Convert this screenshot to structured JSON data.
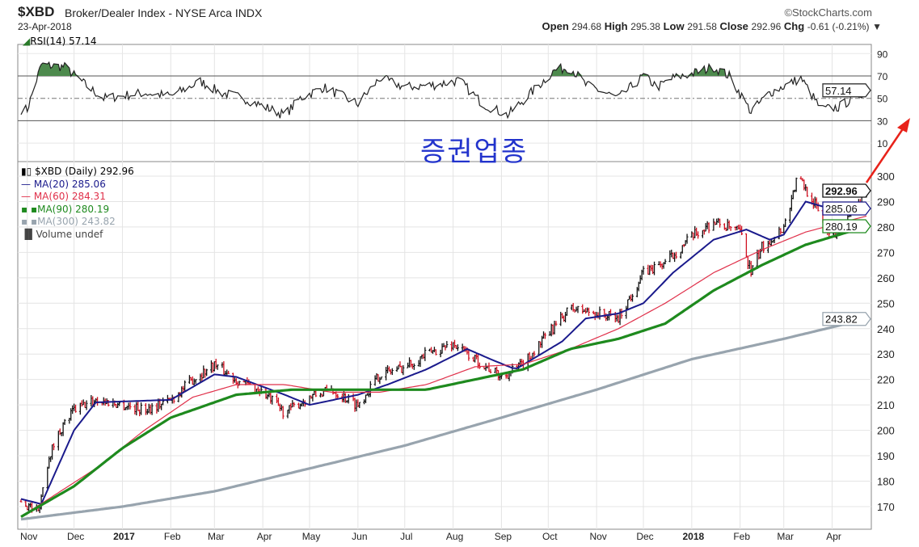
{
  "header": {
    "symbol": "$XBD",
    "description": "Broker/Dealer Index - NYSE Arca",
    "exchange": "INDX",
    "brand": "©StockCharts.com",
    "date": "23-Apr-2018",
    "open_label": "Open",
    "open": "294.68",
    "high_label": "High",
    "high": "295.38",
    "low_label": "Low",
    "low": "291.58",
    "close_label": "Close",
    "close": "292.96",
    "chg_label": "Chg",
    "chg": "-0.61 (-0.21%)",
    "chg_icon": "triangle-down"
  },
  "annotation": {
    "text": "증권업종",
    "color": "#2233cc",
    "arrow_color": "#e8221a"
  },
  "rsi_panel": {
    "label": "RSI(14) 57.14",
    "current": "57.14"
  },
  "legend": {
    "price": "$XBD (Daily) 292.96",
    "ma20": "MA(20) 285.06",
    "ma60": "MA(60) 284.31",
    "ma90": "MA(90) 280.19",
    "ma300": "MA(300) 243.82",
    "volume": "Volume undef"
  },
  "chart_data": [
    {
      "type": "line",
      "title": "RSI(14)",
      "ylim": [
        0,
        100
      ],
      "yticks": [
        "90",
        "70",
        "50",
        "30",
        "10"
      ],
      "overbought": 70,
      "oversold": 30,
      "current": 57.14,
      "x": [
        "2016-11-01",
        "2016-11-10",
        "2016-11-25",
        "2016-12-10",
        "2016-12-20",
        "2017-01-15",
        "2017-02-01",
        "2017-02-20",
        "2017-03-05",
        "2017-03-20",
        "2017-04-15",
        "2017-04-25",
        "2017-05-10",
        "2017-06-01",
        "2017-06-15",
        "2017-07-01",
        "2017-07-20",
        "2017-08-05",
        "2017-08-20",
        "2017-09-05",
        "2017-09-20",
        "2017-10-05",
        "2017-10-15",
        "2017-10-25",
        "2017-11-15",
        "2017-12-01",
        "2017-12-10",
        "2017-12-20",
        "2018-01-01",
        "2018-01-15",
        "2018-01-25",
        "2018-02-08",
        "2018-02-20",
        "2018-03-12",
        "2018-03-25",
        "2018-04-05",
        "2018-04-23"
      ],
      "values": [
        40,
        80,
        78,
        60,
        50,
        55,
        52,
        65,
        55,
        50,
        35,
        50,
        60,
        45,
        68,
        60,
        62,
        66,
        45,
        35,
        55,
        75,
        78,
        62,
        50,
        70,
        60,
        68,
        72,
        78,
        70,
        38,
        55,
        68,
        40,
        42,
        57.14
      ]
    },
    {
      "type": "candlestick",
      "title": "$XBD (Daily)",
      "ylim": [
        165,
        303
      ],
      "yticks": [
        "300",
        "290",
        "280",
        "270",
        "260",
        "250",
        "240",
        "230",
        "220",
        "210",
        "200",
        "190",
        "180",
        "170"
      ],
      "xticks": [
        "Nov",
        "Dec",
        "2017",
        "Feb",
        "Mar",
        "Apr",
        "May",
        "Jun",
        "Jul",
        "Aug",
        "Sep",
        "Oct",
        "Nov",
        "Dec",
        "2018",
        "Feb",
        "Mar",
        "Apr"
      ],
      "xtick_dates": [
        "2016-11-01",
        "2016-12-01",
        "2017-01-01",
        "2017-02-01",
        "2017-03-01",
        "2017-04-01",
        "2017-05-01",
        "2017-06-01",
        "2017-07-01",
        "2017-08-01",
        "2017-09-01",
        "2017-10-01",
        "2017-11-01",
        "2017-12-01",
        "2018-01-01",
        "2018-02-01",
        "2018-03-01",
        "2018-04-01"
      ],
      "x_range": [
        "2016-10-28",
        "2018-04-23"
      ],
      "price": {
        "x": [
          "2016-10-28",
          "2016-11-08",
          "2016-11-15",
          "2016-11-22",
          "2016-12-01",
          "2016-12-15",
          "2017-01-01",
          "2017-01-15",
          "2017-02-01",
          "2017-02-15",
          "2017-03-01",
          "2017-03-15",
          "2017-04-01",
          "2017-04-15",
          "2017-05-01",
          "2017-05-15",
          "2017-06-01",
          "2017-06-15",
          "2017-07-01",
          "2017-07-15",
          "2017-08-01",
          "2017-08-15",
          "2017-09-01",
          "2017-09-15",
          "2017-10-01",
          "2017-10-15",
          "2017-11-01",
          "2017-11-15",
          "2017-12-01",
          "2017-12-15",
          "2018-01-01",
          "2018-01-15",
          "2018-02-01",
          "2018-02-08",
          "2018-02-15",
          "2018-03-01",
          "2018-03-10",
          "2018-03-20",
          "2018-04-01",
          "2018-04-10",
          "2018-04-23"
        ],
        "values": [
          172,
          168,
          190,
          200,
          208,
          212,
          210,
          208,
          212,
          220,
          226,
          220,
          215,
          207,
          213,
          216,
          210,
          222,
          225,
          230,
          234,
          228,
          221,
          226,
          238,
          248,
          246,
          244,
          262,
          266,
          276,
          282,
          278,
          262,
          272,
          280,
          300,
          290,
          276,
          282,
          292.96
        ]
      },
      "series": [
        {
          "name": "MA(20)",
          "color": "#1a1a8c",
          "last": 285.06,
          "x": [
            "2016-10-28",
            "2016-11-10",
            "2016-12-01",
            "2016-12-15",
            "2017-02-01",
            "2017-03-01",
            "2017-03-15",
            "2017-04-15",
            "2017-05-01",
            "2017-06-01",
            "2017-06-20",
            "2017-07-15",
            "2017-08-10",
            "2017-08-25",
            "2017-09-10",
            "2017-10-10",
            "2017-10-25",
            "2017-11-15",
            "2017-12-01",
            "2017-12-20",
            "2018-01-15",
            "2018-02-05",
            "2018-02-20",
            "2018-03-01",
            "2018-03-15",
            "2018-04-01",
            "2018-04-23"
          ],
          "values": [
            173,
            171,
            200,
            211,
            212,
            222,
            221,
            214,
            210,
            214,
            218,
            224,
            232,
            228,
            224,
            235,
            244,
            246,
            250,
            262,
            275,
            279,
            275,
            277,
            290,
            287,
            285.06
          ]
        },
        {
          "name": "MA(60)",
          "color": "#e0304a",
          "last": 284.31,
          "x": [
            "2016-10-28",
            "2016-12-15",
            "2017-01-15",
            "2017-02-15",
            "2017-03-15",
            "2017-04-15",
            "2017-05-15",
            "2017-06-15",
            "2017-07-15",
            "2017-08-15",
            "2017-09-15",
            "2017-10-15",
            "2017-11-15",
            "2017-12-15",
            "2018-01-15",
            "2018-02-15",
            "2018-03-15",
            "2018-04-23"
          ],
          "values": [
            166,
            185,
            200,
            213,
            218,
            218,
            215,
            215,
            218,
            225,
            226,
            232,
            240,
            250,
            262,
            271,
            278,
            284.31
          ]
        },
        {
          "name": "MA(90)",
          "color": "#1e8a1e",
          "last": 280.19,
          "x": [
            "2016-10-28",
            "2016-12-01",
            "2017-01-01",
            "2017-02-01",
            "2017-03-15",
            "2017-04-20",
            "2017-06-01",
            "2017-07-15",
            "2017-08-15",
            "2017-09-15",
            "2017-10-15",
            "2017-11-15",
            "2017-12-15",
            "2018-01-15",
            "2018-02-15",
            "2018-03-15",
            "2018-04-23"
          ],
          "values": [
            166,
            178,
            193,
            205,
            214,
            216,
            216,
            216,
            220,
            224,
            232,
            236,
            242,
            255,
            265,
            273,
            280.19
          ]
        },
        {
          "name": "MA(300)",
          "color": "#98a4ae",
          "last": 243.82,
          "x": [
            "2016-10-28",
            "2017-01-01",
            "2017-03-01",
            "2017-05-01",
            "2017-07-01",
            "2017-09-01",
            "2017-11-01",
            "2018-01-01",
            "2018-03-01",
            "2018-04-23"
          ],
          "values": [
            165,
            170,
            176,
            185,
            194,
            205,
            216,
            228,
            236,
            243.82
          ]
        }
      ]
    }
  ]
}
